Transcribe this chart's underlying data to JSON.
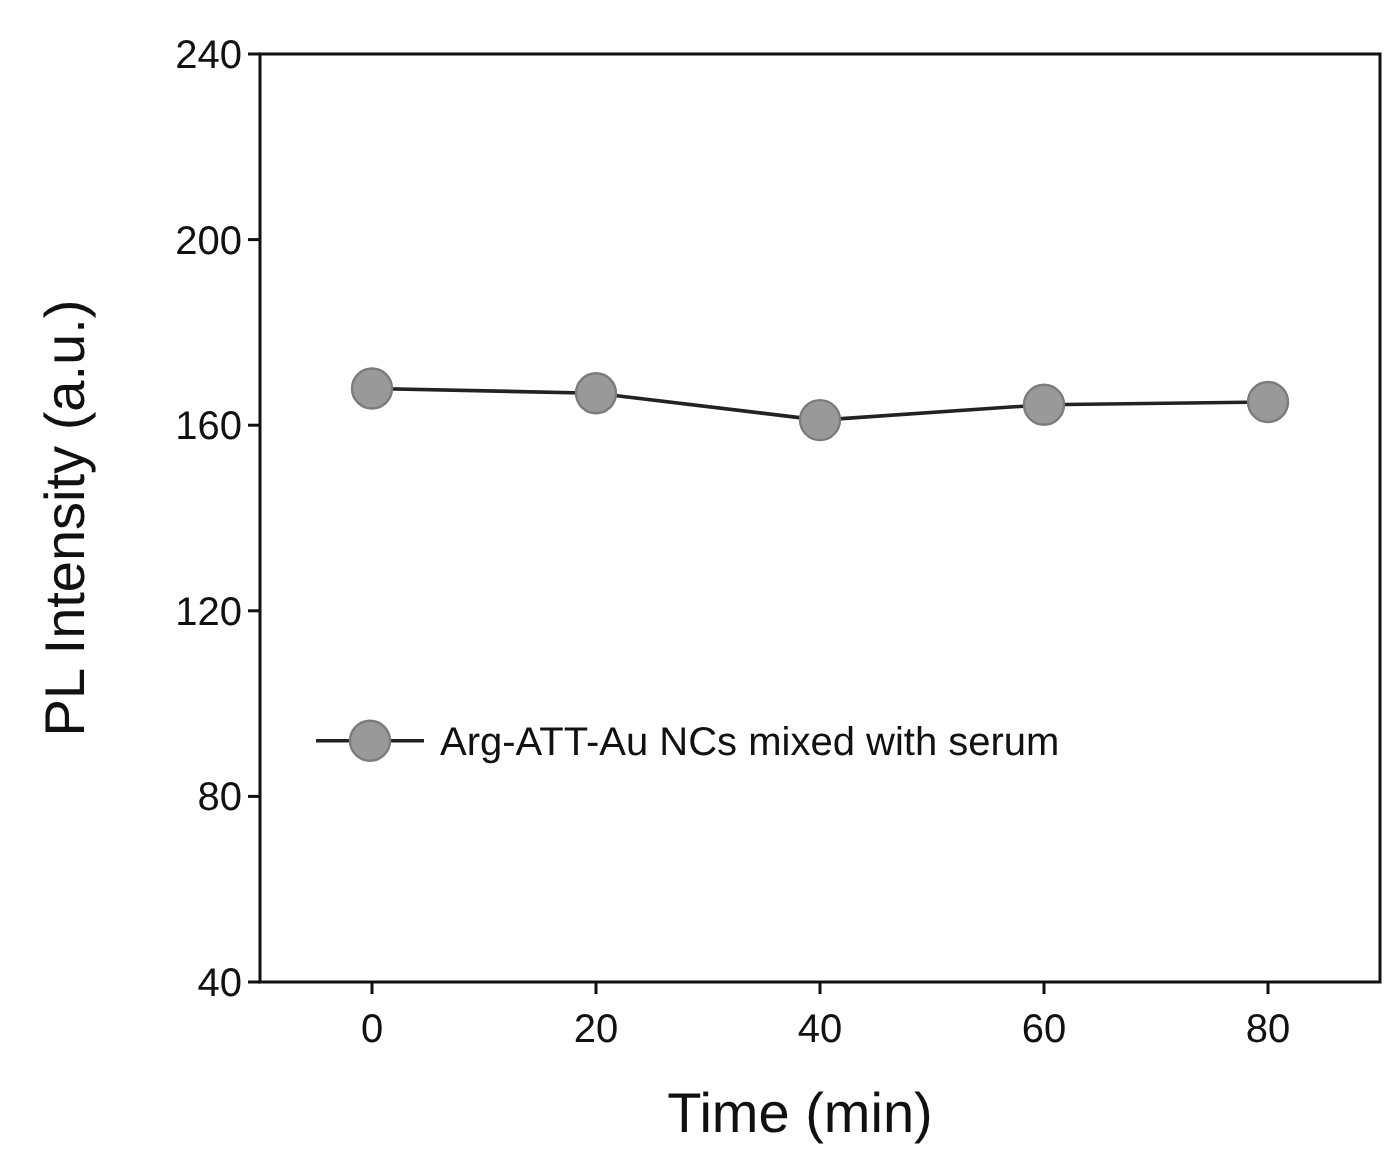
{
  "chart_data": {
    "type": "line",
    "xlabel": "Time (min)",
    "ylabel": "PL Intensity (a.u.)",
    "x": [
      0,
      20,
      40,
      60,
      80
    ],
    "series": [
      {
        "name": "Arg-ATT-Au NCs mixed with serum",
        "color": "#999999",
        "values": [
          167.9,
          166.9,
          161.1,
          164.4,
          165.0
        ]
      }
    ],
    "xlim": [
      -10,
      90
    ],
    "xticks": [
      0,
      20,
      40,
      60,
      80
    ],
    "ylim": [
      40,
      240
    ],
    "yticks": [
      40,
      80,
      120,
      160,
      200,
      240
    ],
    "marker": "circle",
    "line_style": "solid",
    "legend": "center left",
    "grid": false
  }
}
